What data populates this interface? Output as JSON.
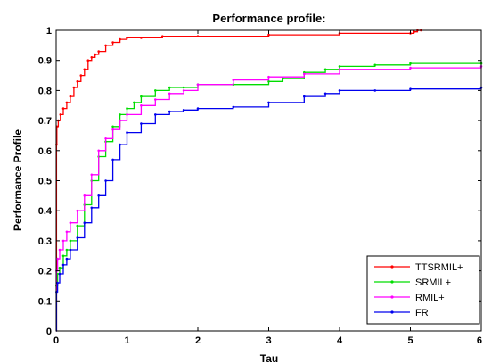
{
  "chart_data": {
    "type": "line",
    "title": "Performance profile:",
    "xlabel": "Tau",
    "ylabel": "Performance Profile",
    "xlim": [
      0,
      6
    ],
    "ylim": [
      0,
      1
    ],
    "xticks": [
      "0",
      "1",
      "2",
      "3",
      "4",
      "5",
      "6"
    ],
    "yticks": [
      "0",
      "0.1",
      "0.2",
      "0.3",
      "0.4",
      "0.5",
      "0.6",
      "0.7",
      "0.8",
      "0.9",
      "1"
    ],
    "grid": false,
    "legend_position": "bottom-right",
    "series": [
      {
        "name": "TTSRMIL+",
        "color": "#ff0000",
        "x": [
          0,
          0.005,
          0.01,
          0.03,
          0.06,
          0.1,
          0.15,
          0.2,
          0.25,
          0.3,
          0.35,
          0.4,
          0.45,
          0.5,
          0.55,
          0.6,
          0.7,
          0.8,
          0.9,
          1.0,
          1.2,
          1.5,
          2.0,
          3.0,
          4.0,
          5.0,
          5.05,
          5.1,
          5.15
        ],
        "y": [
          0.0,
          0.62,
          0.68,
          0.7,
          0.72,
          0.74,
          0.76,
          0.78,
          0.81,
          0.83,
          0.85,
          0.87,
          0.9,
          0.91,
          0.92,
          0.93,
          0.95,
          0.96,
          0.97,
          0.975,
          0.975,
          0.98,
          0.98,
          0.985,
          0.99,
          0.99,
          0.995,
          1.0,
          1.0
        ]
      },
      {
        "name": "SRMIL+",
        "color": "#00dd00",
        "x": [
          0,
          0.005,
          0.02,
          0.05,
          0.1,
          0.15,
          0.2,
          0.3,
          0.4,
          0.5,
          0.6,
          0.7,
          0.8,
          0.9,
          1.0,
          1.1,
          1.2,
          1.4,
          1.6,
          1.8,
          2.0,
          2.5,
          3.0,
          3.2,
          3.5,
          3.8,
          4.0,
          4.5,
          5.0,
          6.0
        ],
        "y": [
          0.0,
          0.15,
          0.19,
          0.21,
          0.25,
          0.27,
          0.3,
          0.35,
          0.42,
          0.5,
          0.58,
          0.63,
          0.68,
          0.72,
          0.74,
          0.76,
          0.78,
          0.8,
          0.81,
          0.81,
          0.82,
          0.82,
          0.83,
          0.84,
          0.86,
          0.87,
          0.88,
          0.885,
          0.89,
          0.89
        ]
      },
      {
        "name": "RMIL+",
        "color": "#ff00ff",
        "x": [
          0,
          0.005,
          0.02,
          0.05,
          0.1,
          0.15,
          0.2,
          0.3,
          0.4,
          0.5,
          0.6,
          0.7,
          0.8,
          0.9,
          1.0,
          1.2,
          1.4,
          1.6,
          1.8,
          2.0,
          2.5,
          3.0,
          3.5,
          4.0,
          5.0,
          6.0
        ],
        "y": [
          0.0,
          0.2,
          0.24,
          0.27,
          0.3,
          0.33,
          0.36,
          0.4,
          0.45,
          0.52,
          0.6,
          0.64,
          0.67,
          0.7,
          0.72,
          0.75,
          0.77,
          0.79,
          0.8,
          0.82,
          0.835,
          0.845,
          0.855,
          0.87,
          0.875,
          0.88
        ]
      },
      {
        "name": "FR",
        "color": "#0000ee",
        "x": [
          0,
          0.005,
          0.02,
          0.05,
          0.1,
          0.15,
          0.2,
          0.3,
          0.4,
          0.5,
          0.6,
          0.7,
          0.8,
          0.9,
          1.0,
          1.2,
          1.4,
          1.6,
          1.8,
          2.0,
          2.5,
          3.0,
          3.5,
          3.8,
          4.0,
          4.5,
          5.0,
          6.0
        ],
        "y": [
          0.0,
          0.13,
          0.16,
          0.19,
          0.22,
          0.24,
          0.27,
          0.31,
          0.36,
          0.41,
          0.45,
          0.5,
          0.57,
          0.62,
          0.66,
          0.69,
          0.72,
          0.73,
          0.735,
          0.74,
          0.745,
          0.76,
          0.78,
          0.79,
          0.8,
          0.8,
          0.805,
          0.81
        ]
      }
    ]
  }
}
